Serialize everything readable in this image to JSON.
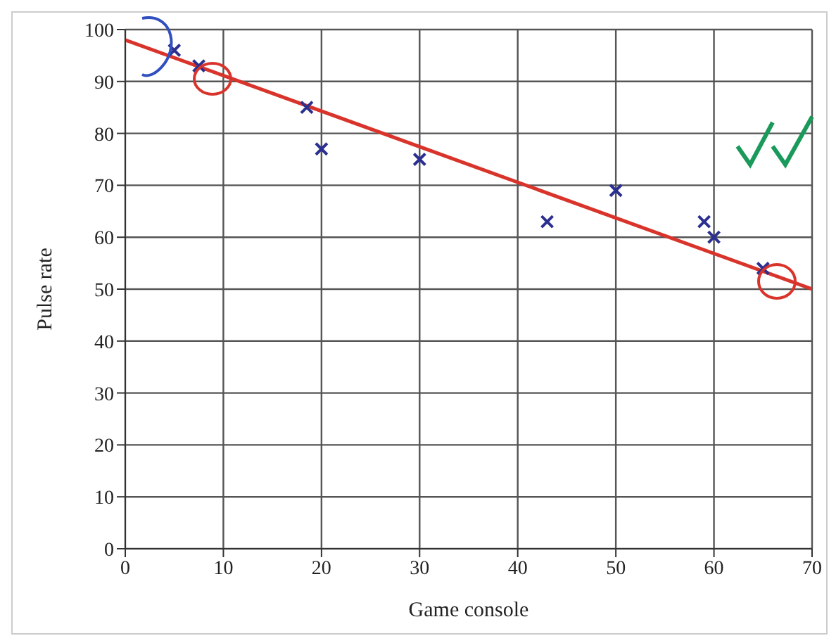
{
  "chart_data": {
    "type": "scatter",
    "xlabel": "Game console",
    "ylabel": "Pulse rate",
    "xlim": [
      0,
      70
    ],
    "ylim": [
      0,
      100
    ],
    "xticks": [
      0,
      10,
      20,
      30,
      40,
      50,
      60,
      70
    ],
    "yticks": [
      0,
      10,
      20,
      30,
      40,
      50,
      60,
      70,
      80,
      90,
      100
    ],
    "grid": true,
    "legend": false,
    "series": [
      {
        "color": "#2b2f8f",
        "marker": "cross",
        "x": [
          5,
          7.5,
          18.5,
          20,
          30,
          43,
          50,
          59,
          60,
          65
        ],
        "values": [
          96,
          93,
          85,
          77,
          75,
          63,
          69,
          63,
          60,
          54
        ]
      },
      {
        "type": "line",
        "color": "#d9342b",
        "x": [
          0,
          70
        ],
        "values": [
          98,
          50
        ]
      }
    ]
  }
}
